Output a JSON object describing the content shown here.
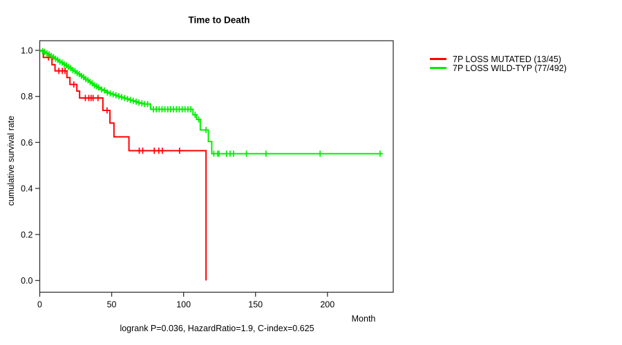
{
  "chart_data": {
    "type": "line",
    "subtype": "kaplan-meier-step",
    "title": "Time to Death",
    "ylabel": "cumulative survival rate",
    "xlabel": "Month",
    "annotation": "logrank P=0.036, HazardRatio=1.9, C-index=0.625",
    "xlim": [
      0,
      245
    ],
    "ylim": [
      0.0,
      1.0
    ],
    "xticks": [
      0,
      50,
      100,
      150,
      200
    ],
    "yticks": [
      "0.0",
      "0.2",
      "0.4",
      "0.6",
      "0.8",
      "1.0"
    ],
    "grid": false,
    "legend_position": "right",
    "series": [
      {
        "name": "7P LOSS MUTATED (13/45)",
        "color": "#ff0000",
        "steps": [
          [
            0,
            1.0
          ],
          [
            2.5,
            0.969
          ],
          [
            8.5,
            0.938
          ],
          [
            10.6,
            0.911
          ],
          [
            18.9,
            0.882
          ],
          [
            21,
            0.852
          ],
          [
            25.8,
            0.823
          ],
          [
            27.7,
            0.793
          ],
          [
            43.9,
            0.739
          ],
          [
            48.8,
            0.684
          ],
          [
            51.6,
            0.624
          ],
          [
            62,
            0.564
          ],
          [
            115.6,
            0.0
          ]
        ],
        "end_month": 115.6,
        "censors": [
          [
            6.1,
            0.969
          ],
          [
            13.3,
            0.911
          ],
          [
            15.7,
            0.911
          ],
          [
            17.6,
            0.911
          ],
          [
            23.7,
            0.852
          ],
          [
            31.7,
            0.793
          ],
          [
            34.1,
            0.793
          ],
          [
            35.7,
            0.793
          ],
          [
            37.1,
            0.793
          ],
          [
            40.5,
            0.793
          ],
          [
            46.8,
            0.739
          ],
          [
            69.2,
            0.564
          ],
          [
            71.6,
            0.564
          ],
          [
            79.6,
            0.564
          ],
          [
            82.8,
            0.564
          ],
          [
            85.2,
            0.564
          ],
          [
            97.2,
            0.564
          ]
        ]
      },
      {
        "name": "7P LOSS WILD-TYP (77/492)",
        "color": "#00ee00",
        "steps": [
          [
            0,
            1.0
          ],
          [
            1,
            0.998
          ],
          [
            2,
            0.996
          ],
          [
            3,
            0.993
          ],
          [
            4,
            0.99
          ],
          [
            5,
            0.987
          ],
          [
            6,
            0.983
          ],
          [
            7,
            0.979
          ],
          [
            8,
            0.975
          ],
          [
            9,
            0.971
          ],
          [
            10,
            0.967
          ],
          [
            11,
            0.963
          ],
          [
            12,
            0.959
          ],
          [
            13,
            0.955
          ],
          [
            14,
            0.951
          ],
          [
            15,
            0.947
          ],
          [
            16,
            0.943
          ],
          [
            17,
            0.939
          ],
          [
            18,
            0.935
          ],
          [
            19,
            0.931
          ],
          [
            20,
            0.927
          ],
          [
            21,
            0.923
          ],
          [
            22,
            0.919
          ],
          [
            23,
            0.914
          ],
          [
            24,
            0.91
          ],
          [
            25,
            0.906
          ],
          [
            26,
            0.902
          ],
          [
            27,
            0.897
          ],
          [
            28,
            0.893
          ],
          [
            29,
            0.889
          ],
          [
            30,
            0.884
          ],
          [
            31,
            0.88
          ],
          [
            32,
            0.875
          ],
          [
            33,
            0.871
          ],
          [
            34,
            0.866
          ],
          [
            35,
            0.862
          ],
          [
            36,
            0.857
          ],
          [
            37,
            0.853
          ],
          [
            38,
            0.848
          ],
          [
            39,
            0.844
          ],
          [
            40,
            0.839
          ],
          [
            41.5,
            0.835
          ],
          [
            43,
            0.83
          ],
          [
            44.5,
            0.826
          ],
          [
            46,
            0.821
          ],
          [
            47.5,
            0.817
          ],
          [
            49,
            0.813
          ],
          [
            50.5,
            0.809
          ],
          [
            52,
            0.805
          ],
          [
            54,
            0.801
          ],
          [
            56,
            0.797
          ],
          [
            58,
            0.793
          ],
          [
            60,
            0.789
          ],
          [
            62,
            0.785
          ],
          [
            64,
            0.781
          ],
          [
            66,
            0.777
          ],
          [
            68,
            0.773
          ],
          [
            70,
            0.77
          ],
          [
            72.5,
            0.767
          ],
          [
            77,
            0.744
          ],
          [
            106.5,
            0.72
          ],
          [
            109,
            0.7
          ],
          [
            111.6,
            0.654
          ],
          [
            117.2,
            0.604
          ],
          [
            119.6,
            0.551
          ]
        ],
        "end_month": 237.5,
        "censors": [
          [
            2,
            0.996
          ],
          [
            3.5,
            0.993
          ],
          [
            5,
            0.987
          ],
          [
            6.5,
            0.983
          ],
          [
            8,
            0.975
          ],
          [
            9.5,
            0.971
          ],
          [
            11,
            0.963
          ],
          [
            12.5,
            0.959
          ],
          [
            14,
            0.951
          ],
          [
            15.5,
            0.947
          ],
          [
            17,
            0.939
          ],
          [
            18.5,
            0.935
          ],
          [
            20,
            0.927
          ],
          [
            21.5,
            0.923
          ],
          [
            23,
            0.914
          ],
          [
            24.5,
            0.91
          ],
          [
            26,
            0.902
          ],
          [
            27.5,
            0.897
          ],
          [
            29,
            0.889
          ],
          [
            30.5,
            0.884
          ],
          [
            32,
            0.875
          ],
          [
            33.5,
            0.871
          ],
          [
            35,
            0.862
          ],
          [
            36.5,
            0.857
          ],
          [
            38,
            0.848
          ],
          [
            39.5,
            0.844
          ],
          [
            41,
            0.839
          ],
          [
            43,
            0.83
          ],
          [
            45,
            0.826
          ],
          [
            47,
            0.817
          ],
          [
            49,
            0.813
          ],
          [
            51,
            0.809
          ],
          [
            53,
            0.805
          ],
          [
            55,
            0.801
          ],
          [
            57,
            0.797
          ],
          [
            59,
            0.793
          ],
          [
            61,
            0.789
          ],
          [
            63,
            0.785
          ],
          [
            65,
            0.781
          ],
          [
            67,
            0.777
          ],
          [
            69,
            0.773
          ],
          [
            71,
            0.77
          ],
          [
            73,
            0.767
          ],
          [
            75,
            0.767
          ],
          [
            79,
            0.744
          ],
          [
            81,
            0.744
          ],
          [
            83,
            0.744
          ],
          [
            85,
            0.744
          ],
          [
            87,
            0.744
          ],
          [
            89,
            0.744
          ],
          [
            91,
            0.744
          ],
          [
            93,
            0.744
          ],
          [
            95,
            0.744
          ],
          [
            97,
            0.744
          ],
          [
            99,
            0.744
          ],
          [
            101,
            0.744
          ],
          [
            103,
            0.744
          ],
          [
            105,
            0.744
          ],
          [
            108,
            0.72
          ],
          [
            110.5,
            0.7
          ],
          [
            115.6,
            0.654
          ],
          [
            121,
            0.551
          ],
          [
            123.6,
            0.551
          ],
          [
            124.6,
            0.551
          ],
          [
            129.9,
            0.551
          ],
          [
            132.3,
            0.551
          ],
          [
            134.7,
            0.551
          ],
          [
            143.7,
            0.551
          ],
          [
            157.3,
            0.551
          ],
          [
            194.9,
            0.551
          ],
          [
            236.6,
            0.551
          ]
        ]
      }
    ]
  }
}
